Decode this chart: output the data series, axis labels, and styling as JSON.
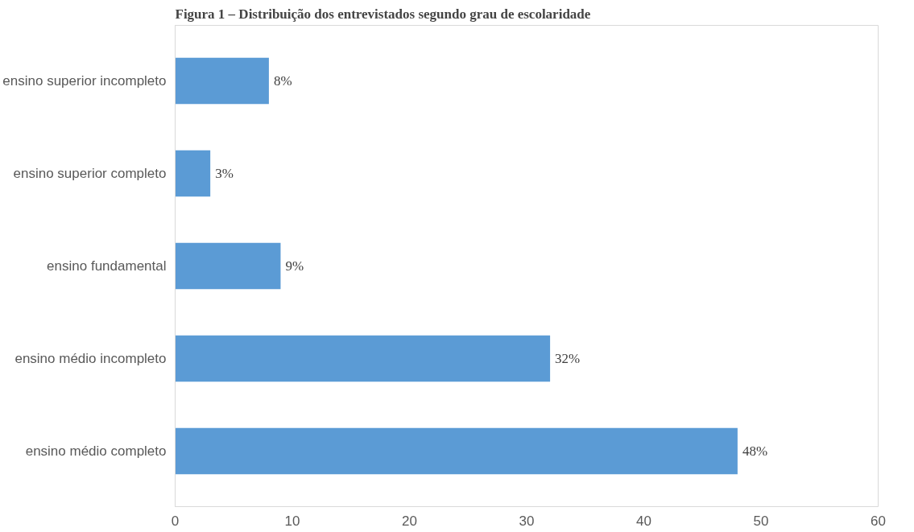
{
  "chart_data": {
    "type": "bar",
    "orientation": "horizontal",
    "title": "Figura 1 – Distribuição dos entrevistados segundo grau de escolaridade",
    "categories": [
      "ensino superior incompleto",
      "ensino superior completo",
      "ensino fundamental",
      "ensino médio incompleto",
      "ensino médio completo"
    ],
    "values": [
      8,
      3,
      9,
      32,
      48
    ],
    "value_labels": [
      "8%",
      "3%",
      "9%",
      "32%",
      "48%"
    ],
    "color": "#5b9bd5",
    "xlim": [
      0,
      60
    ],
    "xticks": [
      0,
      10,
      20,
      30,
      40,
      50,
      60
    ],
    "grid": false
  }
}
